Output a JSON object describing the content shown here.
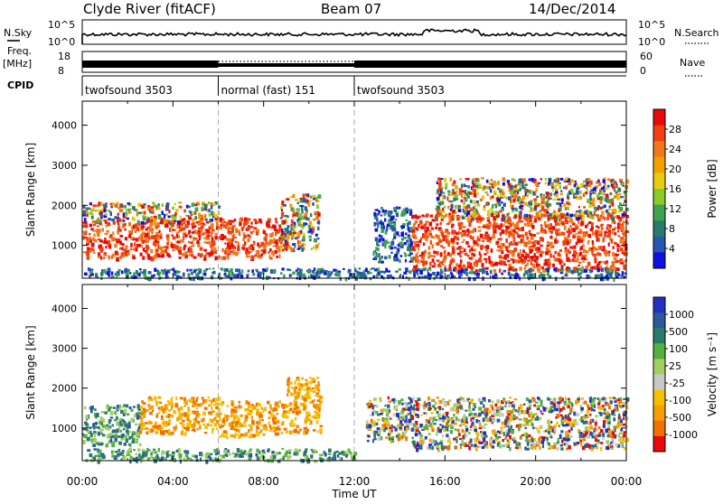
{
  "header": {
    "station": "Clyde River (fitACF)",
    "beam": "Beam 07",
    "date": "14/Dec/2014"
  },
  "labels": {
    "nsky": "N.Sky",
    "nsky_top": "10^5",
    "nsky_bot": "10^0",
    "nsearch": "N.Search",
    "nsearch_top": "10^5",
    "nsearch_bot": "10^0",
    "freq": "Freq.",
    "freq_unit": "[MHz]",
    "freq_top": "18",
    "freq_bot": "8",
    "nave": "Nave",
    "nave_top": "60",
    "nave_bot": "0",
    "cpid": "CPID"
  },
  "cpid_segments": [
    {
      "label": "twofsound 3503",
      "start_hour": 0,
      "end_hour": 6
    },
    {
      "label": "normal (fast) 151",
      "start_hour": 6,
      "end_hour": 12
    },
    {
      "label": "twofsound 3503",
      "start_hour": 12,
      "end_hour": 24
    }
  ],
  "chart_data": [
    {
      "type": "heatmap",
      "panel": "power",
      "xlabel": "Time UT",
      "ylabel": "Slant Range [km]",
      "xlim": [
        0,
        24
      ],
      "ylim": [
        180,
        4600
      ],
      "x_ticks": [
        "00:00",
        "04:00",
        "08:00",
        "12:00",
        "16:00",
        "20:00",
        "00:00"
      ],
      "y_ticks": [
        1000,
        2000,
        3000,
        4000
      ],
      "colorbar": {
        "label": "Power [dB]",
        "ticks": [
          "4",
          "8",
          "12",
          "16",
          "20",
          "24",
          "28"
        ],
        "colors": [
          "#1010e0",
          "#2855b0",
          "#2a7a6a",
          "#3fa24f",
          "#8acb2a",
          "#e8cc10",
          "#f5a000",
          "#f07818",
          "#f04010",
          "#e80808"
        ]
      },
      "scatter_regions": [
        {
          "t0": 0.0,
          "t1": 5.9,
          "r0": 700,
          "r1": 1650,
          "value": "high"
        },
        {
          "t0": 0.0,
          "t1": 6.0,
          "r0": 1600,
          "r1": 2100,
          "value": "mixed"
        },
        {
          "t0": 6.0,
          "t1": 8.8,
          "r0": 700,
          "r1": 1700,
          "value": "high"
        },
        {
          "t0": 8.7,
          "t1": 10.4,
          "r0": 900,
          "r1": 2300,
          "value": "patchy"
        },
        {
          "t0": 12.8,
          "t1": 14.5,
          "r0": 600,
          "r1": 2000,
          "value": "low"
        },
        {
          "t0": 14.5,
          "t1": 24.0,
          "r0": 400,
          "r1": 1800,
          "value": "high"
        },
        {
          "t0": 15.5,
          "t1": 24.0,
          "r0": 1700,
          "r1": 2700,
          "value": "mixed"
        },
        {
          "t0": 0.0,
          "t1": 24.0,
          "r0": 200,
          "r1": 450,
          "value": "low"
        }
      ]
    },
    {
      "type": "heatmap",
      "panel": "velocity",
      "xlabel": "Time UT",
      "ylabel": "Slant Range [km]",
      "xlim": [
        0,
        24
      ],
      "ylim": [
        180,
        4600
      ],
      "x_ticks": [
        "00:00",
        "04:00",
        "08:00",
        "12:00",
        "16:00",
        "20:00",
        "00:00"
      ],
      "y_ticks": [
        1000,
        2000,
        3000,
        4000
      ],
      "colorbar": {
        "label": "Velocity [m s⁻¹]",
        "ticks": [
          "1000",
          "500",
          "100",
          "25",
          "-25",
          "-100",
          "-500",
          "-1000"
        ],
        "colors": [
          "#2030c0",
          "#2a5a9a",
          "#2a7a6a",
          "#55b040",
          "#9fd060",
          "#c8c8c8",
          "#f5c000",
          "#f5a000",
          "#f07000",
          "#e80808"
        ]
      },
      "scatter_regions": [
        {
          "t0": 0.0,
          "t1": 2.5,
          "r0": 600,
          "r1": 1600,
          "value": "positive"
        },
        {
          "t0": 2.5,
          "t1": 6.0,
          "r0": 900,
          "r1": 1800,
          "value": "negative"
        },
        {
          "t0": 6.0,
          "t1": 9.0,
          "r0": 800,
          "r1": 1700,
          "value": "negative"
        },
        {
          "t0": 9.0,
          "t1": 10.5,
          "r0": 900,
          "r1": 2300,
          "value": "negative"
        },
        {
          "t0": 12.5,
          "t1": 14.5,
          "r0": 700,
          "r1": 1800,
          "value": "mixed"
        },
        {
          "t0": 14.5,
          "t1": 24.0,
          "r0": 500,
          "r1": 1800,
          "value": "mixed"
        },
        {
          "t0": 0.0,
          "t1": 12.0,
          "r0": 200,
          "r1": 500,
          "value": "positive"
        }
      ]
    }
  ]
}
